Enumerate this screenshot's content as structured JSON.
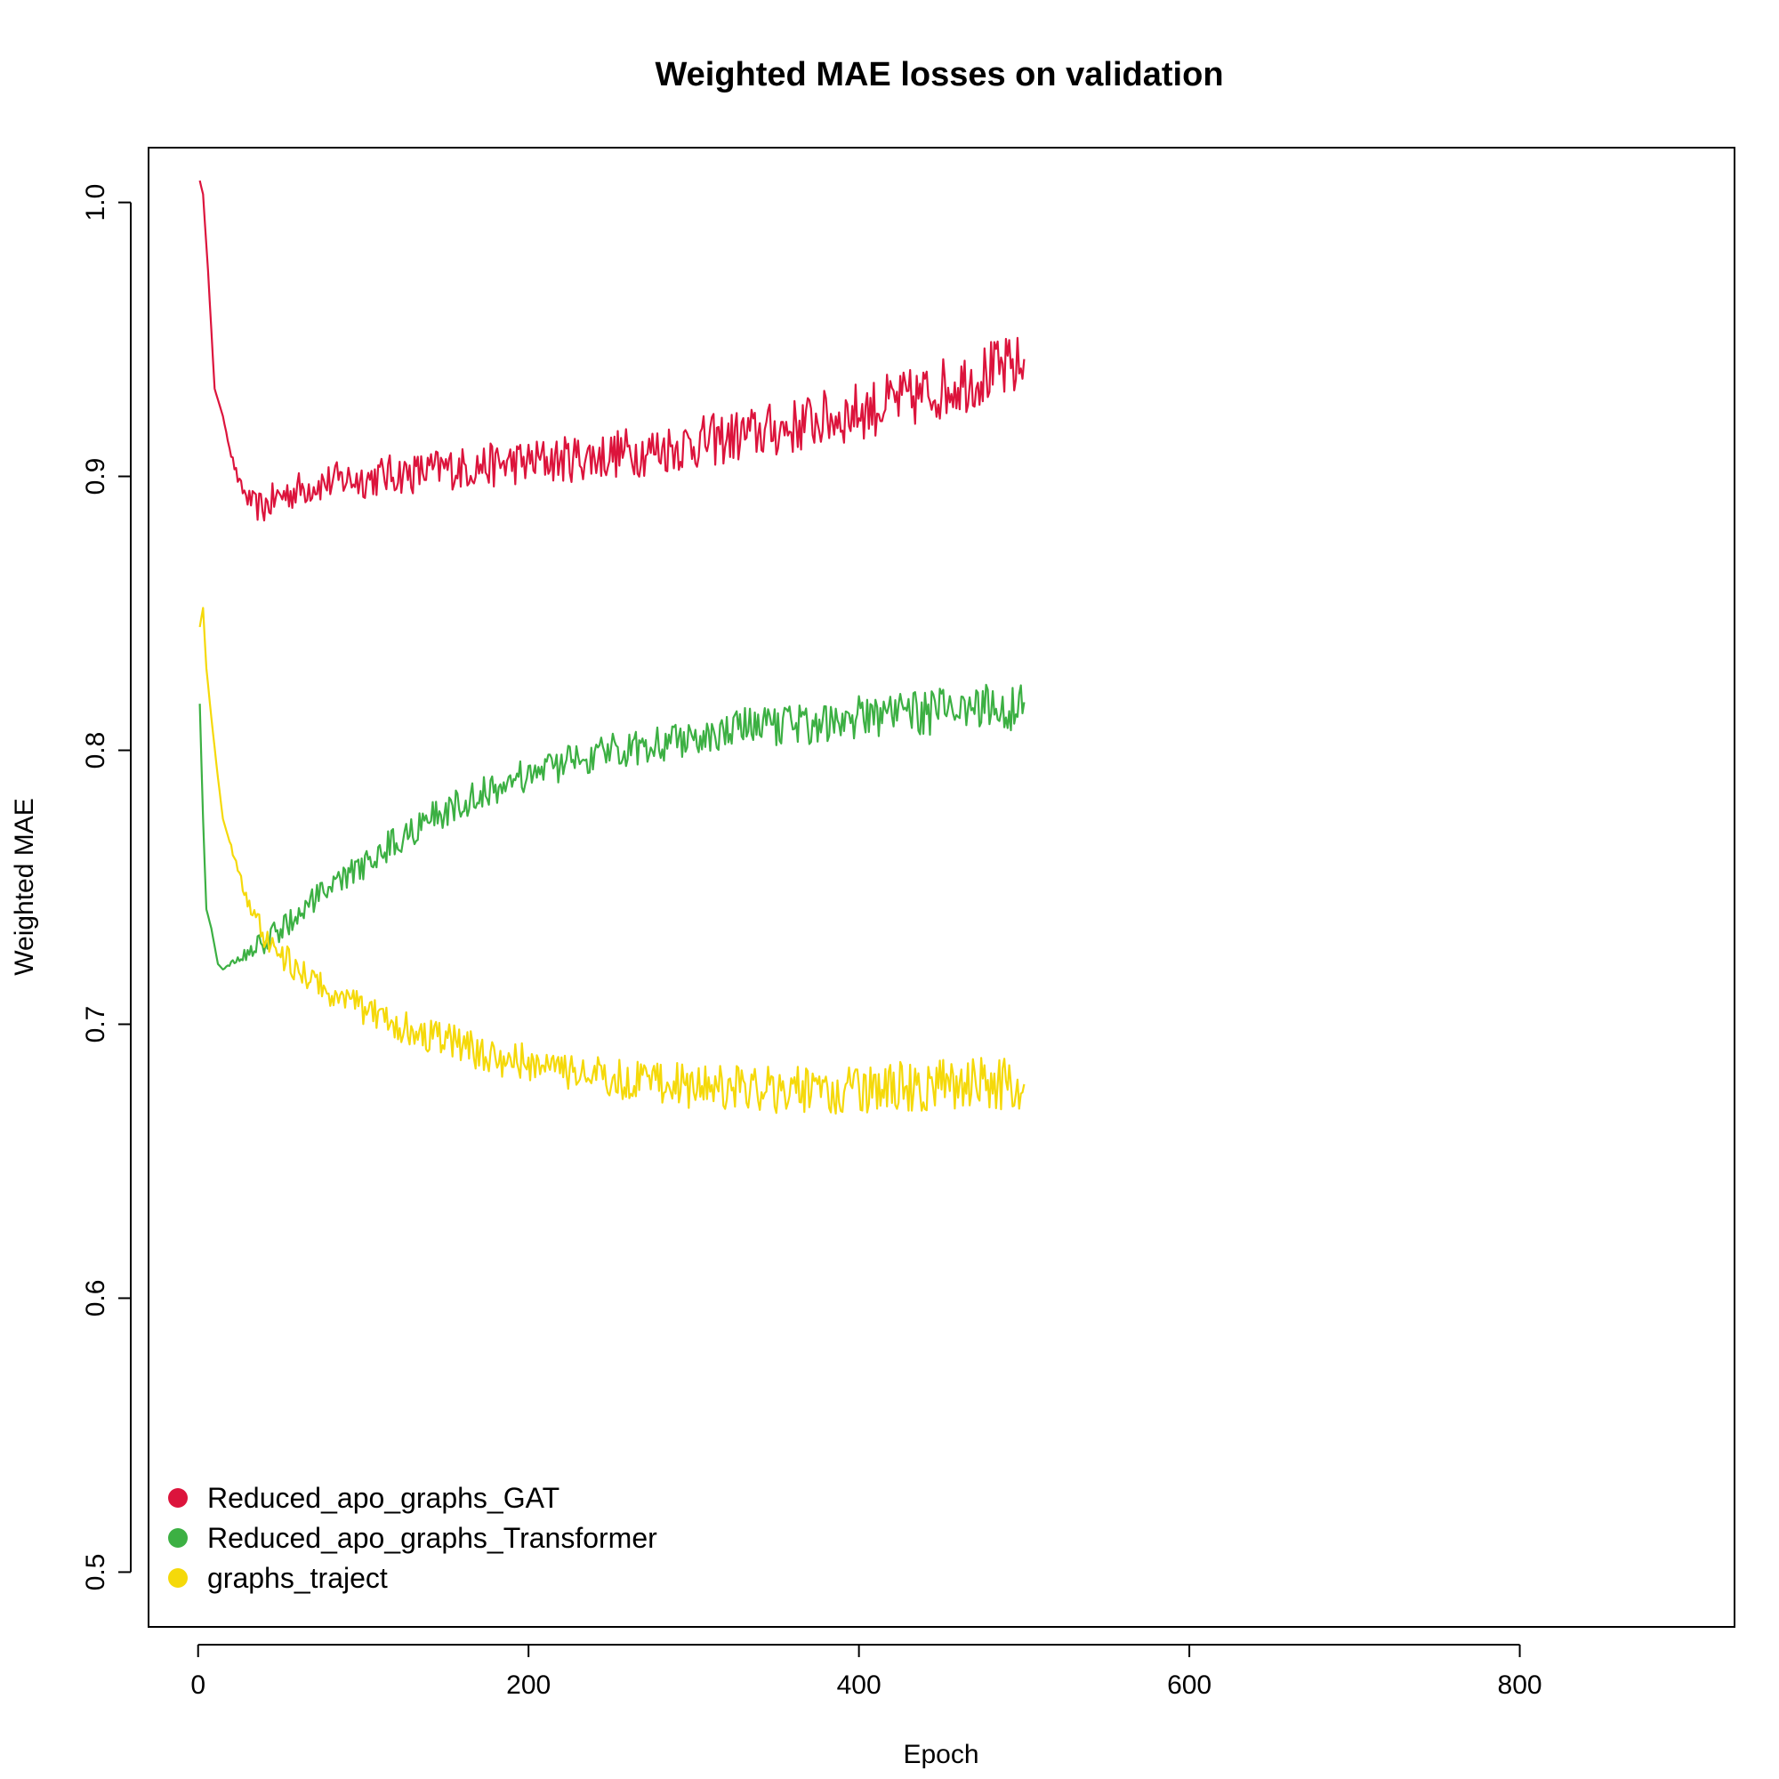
{
  "chart_data": {
    "type": "line",
    "title": "Weighted MAE losses on validation",
    "xlabel": "Epoch",
    "ylabel": "Weighted MAE",
    "xlim": [
      -30,
      930
    ],
    "ylim": [
      0.48,
      1.02
    ],
    "x_ticks": [
      0,
      200,
      400,
      600,
      800
    ],
    "y_ticks": [
      0.5,
      0.6,
      0.7,
      0.8,
      0.9,
      1.0
    ],
    "x_tick_labels": [
      "0",
      "200",
      "400",
      "600",
      "800"
    ],
    "y_tick_labels": [
      "0.5",
      "0.6",
      "0.7",
      "0.8",
      "0.9",
      "1.0"
    ],
    "grid": false,
    "legend_position": "bottom-left",
    "series": [
      {
        "name": "Reduced_apo_graphs_GAT",
        "color": "#DC143C",
        "x": [
          1,
          3,
          6,
          10,
          15,
          20,
          25,
          30,
          35,
          40,
          45,
          50,
          60,
          70,
          80,
          90,
          100,
          110,
          120,
          130,
          140,
          150,
          160,
          170,
          180,
          190,
          200,
          210,
          220,
          230,
          240,
          250,
          260,
          270,
          280,
          290,
          300,
          310,
          320,
          330,
          340,
          350,
          360,
          370,
          380,
          390,
          400,
          410,
          420,
          430,
          440,
          450,
          460,
          470,
          480,
          490,
          500
        ],
        "values": [
          1.008,
          1.003,
          0.975,
          0.932,
          0.922,
          0.908,
          0.897,
          0.892,
          0.889,
          0.889,
          0.891,
          0.893,
          0.895,
          0.897,
          0.898,
          0.899,
          0.899,
          0.9,
          0.901,
          0.901,
          0.902,
          0.903,
          0.903,
          0.904,
          0.904,
          0.905,
          0.905,
          0.906,
          0.906,
          0.907,
          0.907,
          0.908,
          0.909,
          0.909,
          0.91,
          0.911,
          0.912,
          0.913,
          0.914,
          0.915,
          0.916,
          0.917,
          0.918,
          0.92,
          0.921,
          0.922,
          0.924,
          0.925,
          0.927,
          0.928,
          0.93,
          0.932,
          0.934,
          0.936,
          0.938,
          0.939,
          0.94
        ],
        "noise": 0.012
      },
      {
        "name": "Reduced_apo_graphs_Transformer",
        "color": "#3CB043",
        "x": [
          1,
          3,
          5,
          8,
          12,
          15,
          20,
          25,
          30,
          35,
          40,
          50,
          60,
          70,
          80,
          90,
          100,
          110,
          120,
          130,
          140,
          150,
          160,
          170,
          180,
          190,
          200,
          210,
          220,
          230,
          240,
          250,
          260,
          270,
          280,
          290,
          300,
          310,
          320,
          330,
          340,
          350,
          360,
          370,
          380,
          390,
          400,
          410,
          420,
          430,
          440,
          450,
          460,
          470,
          480,
          490,
          500
        ],
        "values": [
          0.817,
          0.775,
          0.742,
          0.735,
          0.722,
          0.72,
          0.722,
          0.724,
          0.726,
          0.728,
          0.73,
          0.735,
          0.74,
          0.745,
          0.749,
          0.754,
          0.758,
          0.763,
          0.767,
          0.771,
          0.775,
          0.778,
          0.781,
          0.784,
          0.786,
          0.789,
          0.791,
          0.793,
          0.795,
          0.797,
          0.798,
          0.8,
          0.801,
          0.802,
          0.803,
          0.804,
          0.805,
          0.806,
          0.807,
          0.808,
          0.808,
          0.809,
          0.81,
          0.81,
          0.811,
          0.811,
          0.812,
          0.812,
          0.813,
          0.813,
          0.814,
          0.814,
          0.815,
          0.815,
          0.816,
          0.816,
          0.816
        ],
        "noise": 0.009
      },
      {
        "name": "graphs_traject",
        "color": "#F5D90A",
        "x": [
          1,
          3,
          5,
          8,
          12,
          15,
          20,
          25,
          30,
          35,
          40,
          45,
          50,
          60,
          70,
          80,
          90,
          100,
          110,
          120,
          130,
          140,
          150,
          160,
          170,
          180,
          190,
          200,
          210,
          220,
          230,
          240,
          250,
          260,
          270,
          280,
          290,
          300,
          310,
          320,
          330,
          340,
          350,
          360,
          370,
          380,
          390,
          400,
          410,
          420,
          430,
          440,
          450,
          460,
          470,
          480,
          490,
          500
        ],
        "values": [
          0.845,
          0.852,
          0.83,
          0.812,
          0.79,
          0.775,
          0.765,
          0.755,
          0.745,
          0.738,
          0.733,
          0.729,
          0.725,
          0.72,
          0.716,
          0.712,
          0.709,
          0.706,
          0.703,
          0.7,
          0.698,
          0.696,
          0.694,
          0.692,
          0.69,
          0.688,
          0.687,
          0.686,
          0.684,
          0.683,
          0.682,
          0.681,
          0.68,
          0.68,
          0.679,
          0.678,
          0.678,
          0.677,
          0.677,
          0.677,
          0.677,
          0.677,
          0.676,
          0.676,
          0.676,
          0.676,
          0.676,
          0.676,
          0.677,
          0.677,
          0.677,
          0.677,
          0.678,
          0.678,
          0.678,
          0.678,
          0.678,
          0.677
        ],
        "noise": 0.01
      }
    ]
  }
}
